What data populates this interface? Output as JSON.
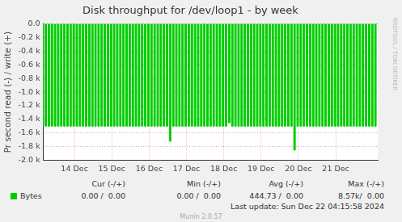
{
  "chart_data": {
    "type": "area",
    "title": "Disk throughput for /dev/loop1 - by week",
    "y_label": "Pr second read (-) / write (+)",
    "categories": [
      null,
      null,
      null,
      null,
      null,
      null,
      null,
      null,
      null,
      null,
      null,
      null,
      null,
      null,
      null,
      null,
      null,
      null,
      null,
      null,
      "14 Dec",
      null,
      null,
      null,
      null,
      null,
      null,
      null,
      null,
      null,
      null,
      null,
      null,
      null,
      null,
      null,
      null,
      null,
      null,
      null,
      null,
      null,
      null,
      null,
      "15 Dec",
      null,
      null,
      null,
      null,
      null,
      null,
      null,
      null,
      null,
      null,
      null,
      null,
      null,
      null,
      null,
      null,
      null,
      null,
      null,
      null,
      null,
      null,
      null,
      "16 Dec",
      null,
      null,
      null,
      null,
      null,
      null,
      null,
      null,
      null,
      null,
      null,
      null,
      null,
      null,
      null,
      null,
      null,
      null,
      null,
      null,
      null,
      null,
      null,
      "17 Dec",
      null,
      null,
      null,
      null,
      null,
      null,
      null,
      null,
      null,
      null,
      null,
      null,
      null,
      null,
      null,
      null,
      null,
      null,
      null,
      null,
      null,
      null,
      null,
      "18 Dec",
      null,
      null,
      null,
      null,
      null,
      null,
      null,
      null,
      null,
      null,
      null,
      null,
      null,
      null,
      null,
      null,
      null,
      null,
      null,
      null,
      null,
      null,
      null,
      "19 Dec",
      null,
      null,
      null,
      null,
      null,
      null,
      null,
      null,
      null,
      null,
      null,
      null,
      null,
      null,
      null,
      null,
      null,
      null,
      null,
      null,
      null,
      null,
      null,
      "20 Dec",
      null,
      null,
      null,
      null,
      null,
      null,
      null,
      null,
      null,
      null,
      null,
      null,
      null,
      null,
      null,
      null,
      null,
      null,
      null,
      null,
      null,
      null,
      null,
      "21 Dec",
      null,
      null,
      null,
      null,
      null,
      null,
      null,
      null,
      null,
      null,
      null,
      null,
      null,
      null,
      null,
      null,
      null,
      null,
      null,
      null,
      null,
      null,
      null,
      null,
      null,
      null,
      null
    ],
    "series": [
      {
        "name": "Bytes",
        "color": "#00cc00",
        "values": [
          -1500,
          0,
          -1500,
          0,
          -1500,
          0,
          -1500,
          0,
          -1500,
          0,
          -1500,
          0,
          -1500,
          0,
          -1500,
          0,
          -1500,
          0,
          -1500,
          0,
          -1500,
          0,
          -1500,
          0,
          -1500,
          0,
          -1500,
          0,
          -1500,
          0,
          -1500,
          0,
          -1500,
          0,
          -1500,
          0,
          -1500,
          0,
          -1500,
          0,
          -1500,
          0,
          -1500,
          0,
          -1500,
          0,
          -1500,
          0,
          -1500,
          0,
          -1500,
          0,
          -1500,
          0,
          -1500,
          0,
          -1500,
          0,
          -1500,
          0,
          -1500,
          0,
          -1500,
          0,
          -1500,
          0,
          -1500,
          0,
          -1500,
          0,
          -1500,
          0,
          -1500,
          0,
          -1500,
          0,
          -1500,
          0,
          -1500,
          0,
          -1500,
          0,
          -1720,
          0,
          -1500,
          0,
          -1500,
          0,
          -1500,
          0,
          -1500,
          0,
          -1500,
          0,
          -1500,
          0,
          -1500,
          0,
          -1500,
          0,
          -1500,
          0,
          -1500,
          0,
          -1500,
          0,
          -1500,
          0,
          -1500,
          0,
          -1500,
          0,
          -1500,
          0,
          -1500,
          0,
          -1500,
          0,
          -1500,
          0,
          -1450,
          0,
          -1500,
          0,
          -1500,
          0,
          -1500,
          0,
          -1500,
          0,
          -1500,
          0,
          -1500,
          0,
          -1500,
          0,
          -1500,
          0,
          -1500,
          0,
          -1500,
          0,
          -1500,
          0,
          -1500,
          0,
          -1500,
          0,
          -1500,
          0,
          -1500,
          0,
          -1500,
          0,
          -1500,
          0,
          -1500,
          0,
          -1500,
          0,
          -1500,
          0,
          -1850,
          0,
          -1500,
          0,
          -1500,
          0,
          -1500,
          0,
          -1500,
          0,
          -1500,
          0,
          -1500,
          0,
          -1500,
          0,
          -1500,
          0,
          -1500,
          0,
          -1500,
          0,
          -1500,
          0,
          -1500,
          0,
          -1500,
          0,
          -1500,
          0,
          -1500,
          0,
          -1500,
          0,
          -1500,
          0,
          -1500,
          0,
          -1500,
          0,
          -1500,
          0,
          -1500,
          0,
          -1500,
          0,
          -1500,
          0,
          -1500,
          0,
          -1500,
          0,
          -1500,
          0
        ]
      }
    ],
    "ylim": [
      -2000,
      0
    ],
    "yticks": [
      {
        "value": 0,
        "label": "0.0"
      },
      {
        "value": -200,
        "label": "-0.2 k"
      },
      {
        "value": -400,
        "label": "-0.4 k"
      },
      {
        "value": -600,
        "label": "-0.6 k"
      },
      {
        "value": -800,
        "label": "-0.8 k"
      },
      {
        "value": -1000,
        "label": "-1.0 k"
      },
      {
        "value": -1200,
        "label": "-1.2 k"
      },
      {
        "value": -1400,
        "label": "-1.4 k"
      },
      {
        "value": -1600,
        "label": "-1.6 k"
      },
      {
        "value": -1800,
        "label": "-1.8 k"
      },
      {
        "value": -2000,
        "label": "-2.0 k"
      }
    ],
    "grid": true,
    "stats": {
      "columns": [
        "Cur (-/+)",
        "Min (-/+)",
        "Avg (-/+)",
        "Max (-/+)"
      ],
      "values": [
        "0.00 /  0.00",
        "0.00 /  0.00",
        "444.73 /  0.00",
        "8.57k/  0.00"
      ]
    },
    "footer": "Last update: Sun Dec 22 04:15:58 2024",
    "credit": "Munin 2.0.57",
    "annotations": [
      "RRDTOOL / TOBI OETIKER"
    ]
  }
}
